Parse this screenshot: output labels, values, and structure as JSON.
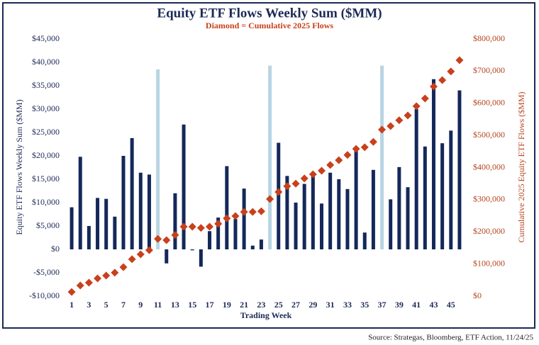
{
  "chart_data": {
    "type": "bar_line",
    "title": "Equity ETF Flows Weekly Sum ($MM)",
    "subtitle": "Diamond = Cumulative 2025 Flows",
    "ylabel": "Equity ETF Flows Weekly Sum ($MM)",
    "y2label": "Cumulative 2025 Equity ETF Flows ($MM)",
    "xlabel": "Trading Week",
    "source": "Source: Strategas, Bloomberg, ETF Action, 11/24/25",
    "categories": [
      "1",
      null,
      "3",
      null,
      "5",
      null,
      "7",
      null,
      "9",
      null,
      "11",
      null,
      "13",
      null,
      "15",
      null,
      "17",
      null,
      "19",
      null,
      "21",
      null,
      "23",
      null,
      "25",
      null,
      "27",
      null,
      "29",
      null,
      "31",
      null,
      "33",
      null,
      "35",
      null,
      "37",
      null,
      "39",
      null,
      "41",
      null,
      "43",
      null,
      "45",
      null
    ],
    "series": [
      {
        "color": "#14285a",
        "colors": [
          "#14285a",
          "#14285a",
          "#14285a",
          "#14285a",
          "#14285a",
          "#14285a",
          "#14285a",
          "#14285a",
          "#14285a",
          "#14285a",
          "#b9d5e4",
          "#14285a",
          "#14285a",
          "#14285a",
          "#14285a",
          "#14285a",
          "#14285a",
          "#14285a",
          "#14285a",
          "#14285a",
          "#14285a",
          "#14285a",
          "#14285a",
          "#b9d5e4",
          "#14285a",
          "#14285a",
          "#14285a",
          "#14285a",
          "#14285a",
          "#14285a",
          "#14285a",
          "#14285a",
          "#14285a",
          "#14285a",
          "#14285a",
          "#14285a",
          "#b9d5e4",
          "#14285a",
          "#14285a",
          "#14285a",
          "#14285a",
          "#14285a",
          "#14285a",
          "#14285a",
          "#14285a",
          "#14285a"
        ],
        "values": [
          9000,
          19800,
          5000,
          11000,
          10800,
          7000,
          20000,
          23800,
          16400,
          16000,
          38500,
          -3000,
          12000,
          26700,
          -200,
          -3700,
          3900,
          6800,
          17800,
          6500,
          13000,
          800,
          2100,
          39300,
          22800,
          15700,
          10000,
          14000,
          15800,
          9800,
          16400,
          15000,
          12900,
          21200,
          3600,
          17000,
          39300,
          10700,
          17600,
          13300,
          30000,
          22000,
          36400,
          22700,
          25400,
          34000
        ]
      },
      {
        "axis": "y2",
        "color": "#c8401c",
        "marker": "diamond",
        "values": [
          13000,
          33000,
          42000,
          55000,
          64000,
          73000,
          90000,
          115000,
          130000,
          143000,
          178000,
          174000,
          190000,
          216000,
          216000,
          212000,
          216000,
          225000,
          242000,
          249000,
          262000,
          262000,
          264000,
          302000,
          324000,
          342000,
          350000,
          366000,
          379000,
          390000,
          408000,
          423000,
          439000,
          458000,
          463000,
          480000,
          518000,
          529000,
          547000,
          562000,
          591000,
          615000,
          652000,
          672000,
          699000,
          734000
        ]
      }
    ],
    "ylim": [
      -10000,
      45000
    ],
    "yticks": [
      {
        "value": -10000,
        "label": "-$10,000"
      },
      {
        "value": -5000,
        "label": "-$5,000"
      },
      {
        "value": 0,
        "label": "$0"
      },
      {
        "value": 5000,
        "label": "$5,000"
      },
      {
        "value": 10000,
        "label": "$10,000"
      },
      {
        "value": 15000,
        "label": "$15,000"
      },
      {
        "value": 20000,
        "label": "$20,000"
      },
      {
        "value": 25000,
        "label": "$25,000"
      },
      {
        "value": 30000,
        "label": "$30,000"
      },
      {
        "value": 35000,
        "label": "$35,000"
      },
      {
        "value": 40000,
        "label": "$40,000"
      },
      {
        "value": 45000,
        "label": "$45,000"
      }
    ],
    "y2lim": [
      0,
      800000
    ],
    "y2ticks": [
      {
        "value": 0,
        "label": "$0"
      },
      {
        "value": 100000,
        "label": "$100,000"
      },
      {
        "value": 200000,
        "label": "$200,000"
      },
      {
        "value": 300000,
        "label": "$300,000"
      },
      {
        "value": 400000,
        "label": "$400,000"
      },
      {
        "value": 500000,
        "label": "$500,000"
      },
      {
        "value": 600000,
        "label": "$600,000"
      },
      {
        "value": 700000,
        "label": "$700,000"
      },
      {
        "value": 800000,
        "label": "$800,000"
      }
    ]
  }
}
